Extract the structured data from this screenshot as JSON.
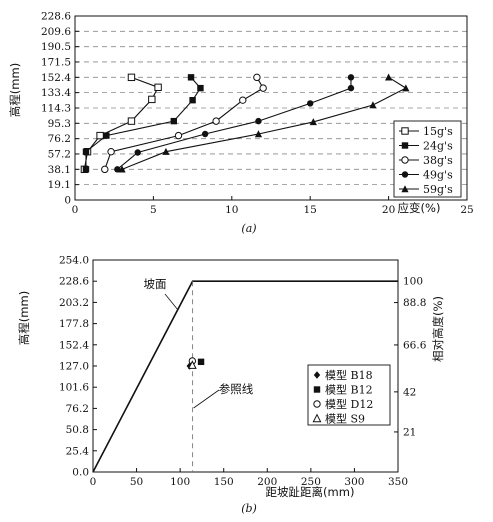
{
  "chart_data": [
    {
      "type": "line",
      "caption": "(a)",
      "xlabel": "应变(%)",
      "ylabel": "高程(mm)",
      "xlim": [
        0,
        25
      ],
      "ylim": [
        0,
        228.6
      ],
      "x_ticks": [
        "0",
        "5",
        "10",
        "15",
        "20",
        "25"
      ],
      "y_ticks": [
        "0",
        "19.1",
        "38.1",
        "57.2",
        "76.2",
        "95.3",
        "114.3",
        "133.4",
        "152.4",
        "171.5",
        "190.5",
        "209.6",
        "228.6"
      ],
      "grid": "horizontal dashed",
      "legend_position": "bottom-right",
      "series": [
        {
          "name": "15g's",
          "marker": "open-square",
          "points": [
            [
              3.6,
              152.4
            ],
            [
              5.3,
              140.0
            ],
            [
              4.9,
              125.0
            ],
            [
              3.6,
              98.0
            ],
            [
              1.6,
              80.0
            ],
            [
              0.8,
              60.0
            ],
            [
              0.6,
              38.1
            ]
          ]
        },
        {
          "name": "24g's",
          "marker": "filled-square",
          "points": [
            [
              7.4,
              152.4
            ],
            [
              8.0,
              139.0
            ],
            [
              7.5,
              124.0
            ],
            [
              6.3,
              98.0
            ],
            [
              2.0,
              80.0
            ],
            [
              0.7,
              60.0
            ],
            [
              0.7,
              38.1
            ]
          ]
        },
        {
          "name": "38g's",
          "marker": "open-circle",
          "points": [
            [
              11.6,
              152.4
            ],
            [
              12.0,
              139.0
            ],
            [
              10.7,
              124.0
            ],
            [
              9.0,
              98.0
            ],
            [
              6.6,
              80.0
            ],
            [
              2.3,
              60.0
            ],
            [
              1.9,
              38.1
            ]
          ]
        },
        {
          "name": "49g's",
          "marker": "filled-circle",
          "points": [
            [
              17.6,
              152.4
            ],
            [
              17.6,
              139.0
            ],
            [
              15.0,
              120.0
            ],
            [
              11.7,
              98.0
            ],
            [
              8.3,
              82.0
            ],
            [
              4.0,
              59.0
            ],
            [
              2.7,
              38.1
            ]
          ]
        },
        {
          "name": "59g's",
          "marker": "filled-triangle",
          "points": [
            [
              20.0,
              152.4
            ],
            [
              21.1,
              139.0
            ],
            [
              19.0,
              118.0
            ],
            [
              15.2,
              97.0
            ],
            [
              11.7,
              82.0
            ],
            [
              5.8,
              60.0
            ],
            [
              3.0,
              38.1
            ]
          ]
        }
      ]
    },
    {
      "type": "scatter",
      "caption": "(b)",
      "xlabel": "距坡趾距离(mm)",
      "ylabel": "高程(mm)",
      "y2label": "相对高度(%)",
      "xlim": [
        0,
        350
      ],
      "ylim": [
        0,
        254
      ],
      "x_ticks": [
        "0",
        "50",
        "100",
        "150",
        "200",
        "250",
        "300",
        "350"
      ],
      "y_ticks": [
        "0.0",
        "25.4",
        "50.8",
        "76.2",
        "101.6",
        "127.0",
        "152.4",
        "177.8",
        "203.2",
        "228.6",
        "254.0"
      ],
      "y2_ticks": [
        "21",
        "42",
        "66.6",
        "88.8",
        "100"
      ],
      "slope_label": "坡面",
      "reference_label": "参照线",
      "slope_line": [
        [
          0,
          0
        ],
        [
          114.3,
          228.6
        ],
        [
          350,
          228.6
        ]
      ],
      "reference_x": 114.3,
      "legend_position": "lower-right",
      "series": [
        {
          "name": "模型 B18",
          "marker": "filled-diamond",
          "points": [
            [
              111,
              127
            ]
          ]
        },
        {
          "name": "模型 B12",
          "marker": "filled-square",
          "points": [
            [
              124,
              132
            ]
          ]
        },
        {
          "name": "模型 D12",
          "marker": "open-circle",
          "points": [
            [
              114,
              133
            ]
          ]
        },
        {
          "name": "模型 S9",
          "marker": "open-triangle",
          "points": [
            [
              114,
              128
            ]
          ]
        }
      ]
    }
  ]
}
